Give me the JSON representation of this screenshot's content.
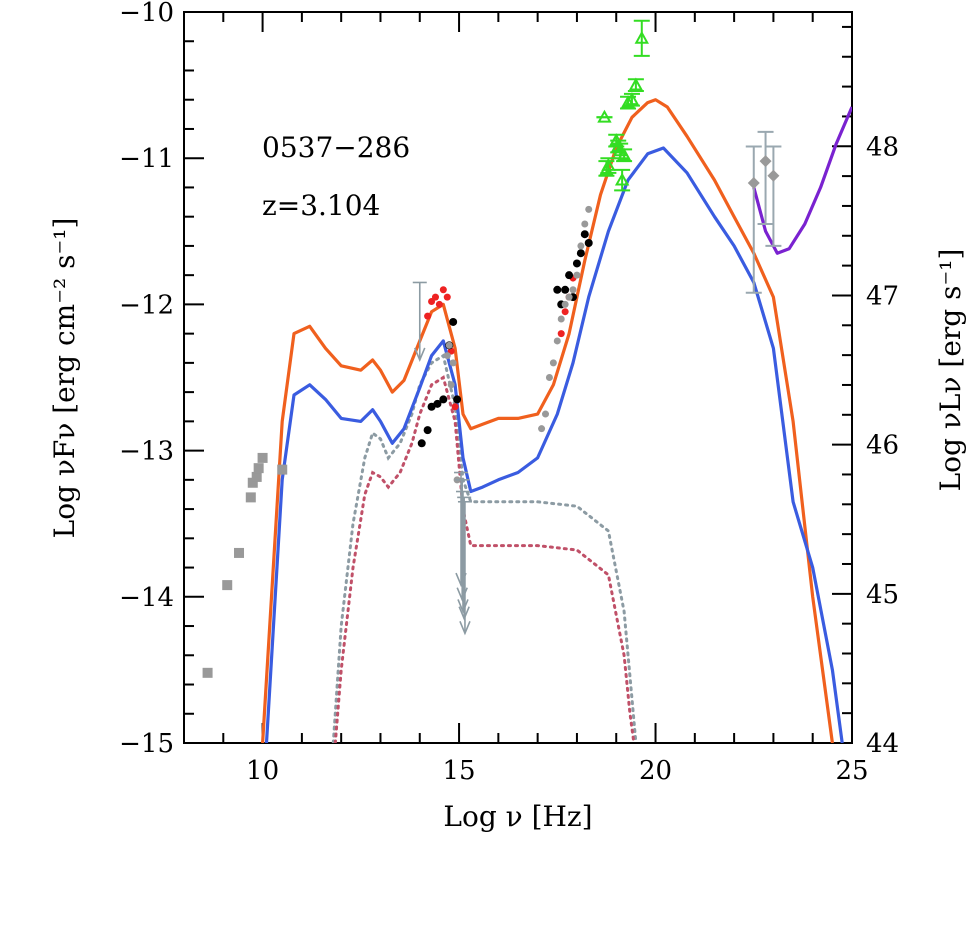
{
  "chart_data": {
    "type": "scatter",
    "title": "",
    "annotations": [
      "0537−286",
      "z=3.104"
    ],
    "xlabel_text": "Log ν [Hz]",
    "ylabel_text": "Log νFν [erg cm⁻² s⁻¹]",
    "y2label_text": "Log νLν [erg s⁻¹]",
    "xlim": [
      8,
      25
    ],
    "ylim": [
      -15,
      -10
    ],
    "y2lim": [
      44,
      48.9
    ],
    "x_ticks": [
      10,
      15,
      20,
      25
    ],
    "x_tick_labels": [
      "10",
      "15",
      "20",
      "25"
    ],
    "y_ticks": [
      -15,
      -14,
      -13,
      -12,
      -11,
      -10
    ],
    "y_tick_labels": [
      "−15",
      "−14",
      "−13",
      "−12",
      "−11",
      "−10"
    ],
    "y2_ticks": [
      44,
      45,
      46,
      47,
      48
    ],
    "y2_tick_labels": [
      "44",
      "45",
      "46",
      "47",
      "48"
    ],
    "colors": {
      "orange": "#f0601e",
      "blue": "#3a5ce0",
      "purple": "#7a22d0",
      "gray": "#8c9ba3",
      "maroon": "#c05068",
      "green": "#33dd22",
      "red": "#ee2222",
      "black": "#000000",
      "data_gray": "#999999"
    },
    "series": [
      {
        "name": "model total (orange)",
        "style": "line",
        "color_key": "orange",
        "x": [
          10.0,
          10.5,
          10.8,
          11.2,
          11.6,
          12.0,
          12.5,
          12.8,
          13.0,
          13.3,
          13.6,
          14.0,
          14.3,
          14.6,
          14.9,
          15.1,
          15.3,
          15.6,
          16.0,
          16.5,
          17.0,
          17.4,
          17.8,
          18.2,
          18.6,
          19.0,
          19.4,
          19.8,
          20.0,
          20.3,
          20.8,
          21.5,
          22.0,
          22.5,
          23.0,
          23.5,
          24.0,
          24.5
        ],
        "y": [
          -15.0,
          -12.8,
          -12.2,
          -12.15,
          -12.3,
          -12.42,
          -12.45,
          -12.38,
          -12.45,
          -12.6,
          -12.52,
          -12.25,
          -12.05,
          -12.0,
          -12.3,
          -12.75,
          -12.85,
          -12.82,
          -12.78,
          -12.78,
          -12.75,
          -12.55,
          -12.2,
          -11.7,
          -11.25,
          -10.93,
          -10.72,
          -10.62,
          -10.6,
          -10.65,
          -10.85,
          -11.15,
          -11.4,
          -11.65,
          -11.95,
          -12.8,
          -14.0,
          -15.0
        ]
      },
      {
        "name": "model total (blue)",
        "style": "line",
        "color_key": "blue",
        "x": [
          10.1,
          10.5,
          10.8,
          11.2,
          11.6,
          12.0,
          12.5,
          12.8,
          13.0,
          13.3,
          13.6,
          14.0,
          14.3,
          14.6,
          14.9,
          15.1,
          15.3,
          15.6,
          16.0,
          16.5,
          17.0,
          17.5,
          17.9,
          18.3,
          18.8,
          19.3,
          19.8,
          20.2,
          20.8,
          21.5,
          22.0,
          22.5,
          23.0,
          23.5,
          24.0,
          24.5,
          24.75
        ],
        "y": [
          -15.0,
          -13.2,
          -12.62,
          -12.55,
          -12.65,
          -12.78,
          -12.8,
          -12.72,
          -12.8,
          -12.95,
          -12.85,
          -12.57,
          -12.35,
          -12.25,
          -12.55,
          -13.05,
          -13.28,
          -13.25,
          -13.2,
          -13.15,
          -13.05,
          -12.75,
          -12.4,
          -11.95,
          -11.5,
          -11.15,
          -10.97,
          -10.93,
          -11.1,
          -11.4,
          -11.6,
          -11.85,
          -12.3,
          -13.35,
          -13.8,
          -14.5,
          -15.0
        ]
      },
      {
        "name": "IC tail (purple)",
        "style": "line",
        "color_key": "purple",
        "x": [
          22.5,
          22.8,
          23.1,
          23.4,
          23.8,
          24.2,
          24.6,
          25.0
        ],
        "y": [
          -11.2,
          -11.5,
          -11.65,
          -11.62,
          -11.45,
          -11.2,
          -10.9,
          -10.65
        ]
      },
      {
        "name": "thermal component (gray dotted)",
        "style": "dotted",
        "color_key": "gray",
        "x": [
          11.8,
          12.0,
          12.3,
          12.6,
          12.8,
          13.0,
          13.2,
          13.5,
          13.8,
          14.0,
          14.3,
          14.6,
          14.9,
          15.1,
          15.3,
          16.0,
          17.0,
          18.0,
          18.8,
          19.2,
          19.4,
          19.5
        ],
        "y": [
          -15.0,
          -14.2,
          -13.5,
          -13.05,
          -12.88,
          -12.92,
          -13.05,
          -12.95,
          -12.75,
          -12.55,
          -12.4,
          -12.35,
          -12.7,
          -13.2,
          -13.35,
          -13.35,
          -13.35,
          -13.38,
          -13.55,
          -14.1,
          -14.7,
          -15.0
        ]
      },
      {
        "name": "thermal component (maroon dotted)",
        "style": "dotted",
        "color_key": "maroon",
        "x": [
          11.85,
          12.0,
          12.3,
          12.6,
          12.8,
          13.0,
          13.2,
          13.5,
          13.8,
          14.0,
          14.3,
          14.6,
          14.9,
          15.1,
          15.3,
          16.0,
          17.0,
          18.0,
          18.8,
          19.2,
          19.35,
          19.45
        ],
        "y": [
          -15.0,
          -14.5,
          -13.8,
          -13.3,
          -13.15,
          -13.18,
          -13.25,
          -13.15,
          -12.95,
          -12.75,
          -12.55,
          -12.5,
          -12.8,
          -13.4,
          -13.65,
          -13.65,
          -13.65,
          -13.68,
          -13.85,
          -14.4,
          -14.8,
          -15.0
        ]
      },
      {
        "name": "radio data (gray squares)",
        "style": "square",
        "color_key": "data_gray",
        "size": 10,
        "x": [
          8.6,
          9.1,
          9.4,
          9.7,
          9.75,
          9.85,
          9.9,
          10.0,
          10.5
        ],
        "y": [
          -14.52,
          -13.92,
          -13.7,
          -13.32,
          -13.22,
          -13.18,
          -13.12,
          -13.05,
          -13.13
        ]
      },
      {
        "name": "Fermi/LAT (gray diamonds)",
        "style": "diamond",
        "color_key": "data_gray",
        "size": 12,
        "x": [
          22.5,
          22.8,
          23.0
        ],
        "y": [
          -11.17,
          -11.02,
          -11.12
        ],
        "err_low": [
          -11.92,
          -11.45,
          -11.6
        ],
        "err_high": [
          -10.92,
          -10.82,
          -10.92
        ]
      },
      {
        "name": "BAT (green triangles)",
        "style": "triangle_open",
        "color_key": "green",
        "size": 11,
        "x": [
          18.7,
          18.75,
          18.8,
          19.0,
          19.05,
          19.1,
          19.15,
          19.2,
          19.3,
          19.4,
          19.5,
          19.65
        ],
        "y": [
          -10.72,
          -11.08,
          -11.05,
          -10.88,
          -10.92,
          -10.95,
          -11.15,
          -10.98,
          -10.62,
          -10.6,
          -10.5,
          -10.18
        ],
        "err_low": [
          -10.72,
          -11.12,
          -11.1,
          -10.92,
          -10.96,
          -11.0,
          -11.22,
          -11.02,
          -10.66,
          -10.64,
          -10.54,
          -10.3
        ],
        "err_high": [
          -10.72,
          -11.02,
          -11.0,
          -10.84,
          -10.88,
          -10.9,
          -11.08,
          -10.94,
          -10.58,
          -10.56,
          -10.46,
          -10.06
        ]
      },
      {
        "name": "optical/UV (red points)",
        "style": "circle",
        "color_key": "red",
        "size": 7,
        "x": [
          14.2,
          14.3,
          14.4,
          14.5,
          14.6,
          14.7,
          14.8,
          14.9,
          17.6,
          17.7,
          17.8,
          17.9,
          18.0
        ],
        "y": [
          -12.08,
          -11.98,
          -11.95,
          -12.0,
          -11.9,
          -11.95,
          -12.32,
          -12.7,
          -12.2,
          -12.05,
          -11.95,
          -11.82,
          -11.72
        ]
      },
      {
        "name": "optical/X-ray (black points)",
        "style": "circle",
        "color_key": "black",
        "size": 8,
        "x": [
          14.05,
          14.2,
          14.3,
          14.45,
          14.6,
          14.75,
          14.85,
          14.95,
          17.5,
          17.6,
          17.7,
          17.8,
          17.9,
          18.0,
          18.1,
          18.2,
          18.3
        ],
        "y": [
          -12.95,
          -12.86,
          -12.7,
          -12.68,
          -12.65,
          -12.28,
          -12.12,
          -12.65,
          -11.9,
          -12.0,
          -11.9,
          -11.8,
          -11.95,
          -11.72,
          -11.65,
          -11.52,
          -11.58
        ]
      },
      {
        "name": "X-ray (gray points)",
        "style": "circle",
        "color_key": "data_gray",
        "size": 7,
        "x": [
          14.7,
          14.75,
          14.8,
          14.85,
          14.95,
          17.1,
          17.2,
          17.3,
          17.4,
          17.5,
          17.6,
          17.7,
          17.8,
          17.9,
          18.0,
          18.1,
          18.2,
          18.3
        ],
        "y": [
          -12.35,
          -12.28,
          -12.55,
          -12.4,
          -13.2,
          -12.85,
          -12.75,
          -12.5,
          -12.4,
          -12.25,
          -12.1,
          -12.0,
          -11.95,
          -11.9,
          -11.8,
          -11.6,
          -11.45,
          -11.35
        ]
      }
    ],
    "upper_limits": {
      "color_key": "gray",
      "x": [
        14.0,
        15.05,
        15.08,
        15.1,
        15.13,
        15.15
      ],
      "y": [
        -11.85,
        -13.15,
        -13.2,
        -13.28,
        -13.32,
        -13.35
      ],
      "y_arrow_end": [
        -12.38,
        -13.92,
        -14.02,
        -14.1,
        -14.15,
        -14.25
      ]
    }
  }
}
